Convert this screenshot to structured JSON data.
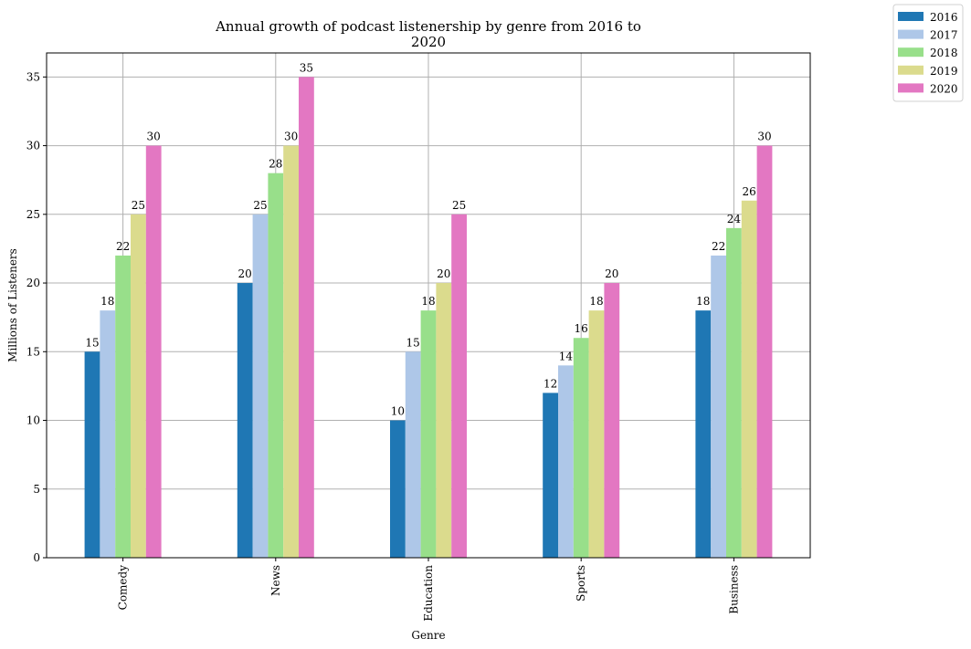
{
  "chart_data": {
    "type": "bar",
    "title_lines": [
      "Annual growth of podcast listenership by genre from 2016 to",
      "2020"
    ],
    "xlabel": "Genre",
    "ylabel": "Millions of Listeners",
    "categories": [
      "Comedy",
      "News",
      "Education",
      "Sports",
      "Business"
    ],
    "series": [
      {
        "name": "2016",
        "color": "#1f77b4",
        "values": [
          15,
          20,
          10,
          12,
          18
        ]
      },
      {
        "name": "2017",
        "color": "#aec7e8",
        "values": [
          18,
          25,
          15,
          14,
          22
        ]
      },
      {
        "name": "2018",
        "color": "#98df8a",
        "values": [
          22,
          28,
          18,
          16,
          24
        ]
      },
      {
        "name": "2019",
        "color": "#dbdb8d",
        "values": [
          25,
          30,
          20,
          18,
          26
        ]
      },
      {
        "name": "2020",
        "color": "#e377c2",
        "values": [
          30,
          35,
          25,
          20,
          30
        ]
      }
    ],
    "ylim": [
      0,
      36.75
    ],
    "yticks": [
      0,
      5,
      10,
      15,
      20,
      25,
      30,
      35
    ],
    "grid": true,
    "legend_position": "top-right, outside plot"
  }
}
